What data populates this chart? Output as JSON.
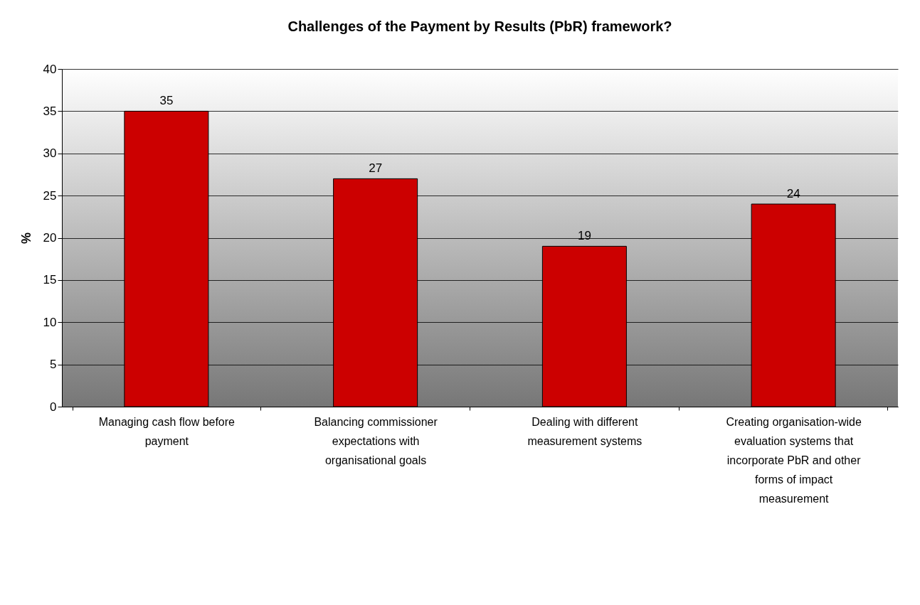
{
  "chart_data": {
    "type": "bar",
    "title": "Challenges of the Payment by Results (PbR) framework?",
    "ylabel": "%",
    "categories": [
      "Managing cash flow before payment",
      "Balancing commissioner expectations with organisational goals",
      "Dealing with different measurement systems",
      "Creating organisation-wide evaluation systems that incorporate PbR and other forms of impact measurement"
    ],
    "values": [
      35,
      27,
      19,
      24
    ],
    "color": "#cc0000",
    "ylim": [
      0,
      40
    ],
    "yticks": [
      0,
      5,
      10,
      15,
      20,
      25,
      30,
      35,
      40
    ],
    "grid": "y",
    "data_labels": true
  }
}
